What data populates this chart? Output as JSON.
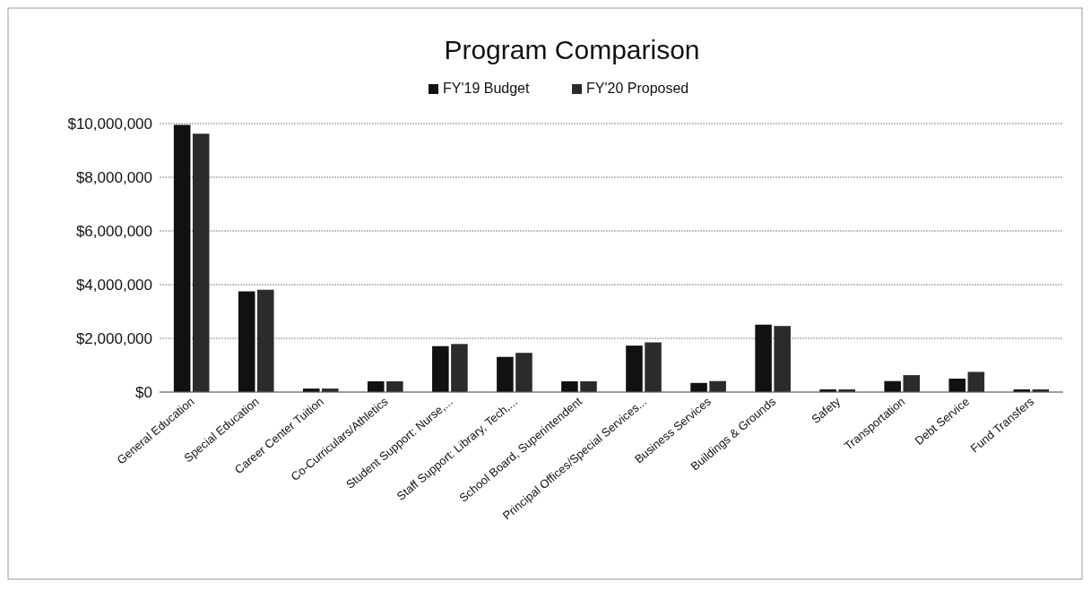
{
  "chart_data": {
    "type": "bar",
    "title": "Program Comparison",
    "categories": [
      "General Education",
      "Special Education",
      "Career Center Tuition",
      "Co-Curriculars/Athletics",
      "Student Support: Nurse,...",
      "Staff Support: Library, Tech,...",
      "School Board, Superintendent",
      "Principal Offices/Special Services...",
      "Business Services",
      "Buildings & Grounds",
      "Safety",
      "Transportation",
      "Debt Service",
      "Fund Transfers"
    ],
    "series": [
      {
        "name": "FY'19 Budget",
        "color": "#111111",
        "values": [
          9950000,
          3750000,
          130000,
          400000,
          1710000,
          1310000,
          400000,
          1730000,
          340000,
          2510000,
          100000,
          410000,
          500000,
          100000
        ]
      },
      {
        "name": "FY'20 Proposed",
        "color": "#2b2b2b",
        "values": [
          9620000,
          3810000,
          130000,
          400000,
          1790000,
          1460000,
          400000,
          1850000,
          410000,
          2460000,
          100000,
          630000,
          750000,
          100000
        ]
      }
    ],
    "ylim": [
      0,
      10000000
    ],
    "yticks": [
      {
        "value": 0,
        "label": "$0"
      },
      {
        "value": 2000000,
        "label": "$2,000,000"
      },
      {
        "value": 4000000,
        "label": "$4,000,000"
      },
      {
        "value": 6000000,
        "label": "$6,000,000"
      },
      {
        "value": 8000000,
        "label": "$8,000,000"
      },
      {
        "value": 10000000,
        "label": "$10,000,000"
      }
    ],
    "grid": "y",
    "legend": "top"
  }
}
